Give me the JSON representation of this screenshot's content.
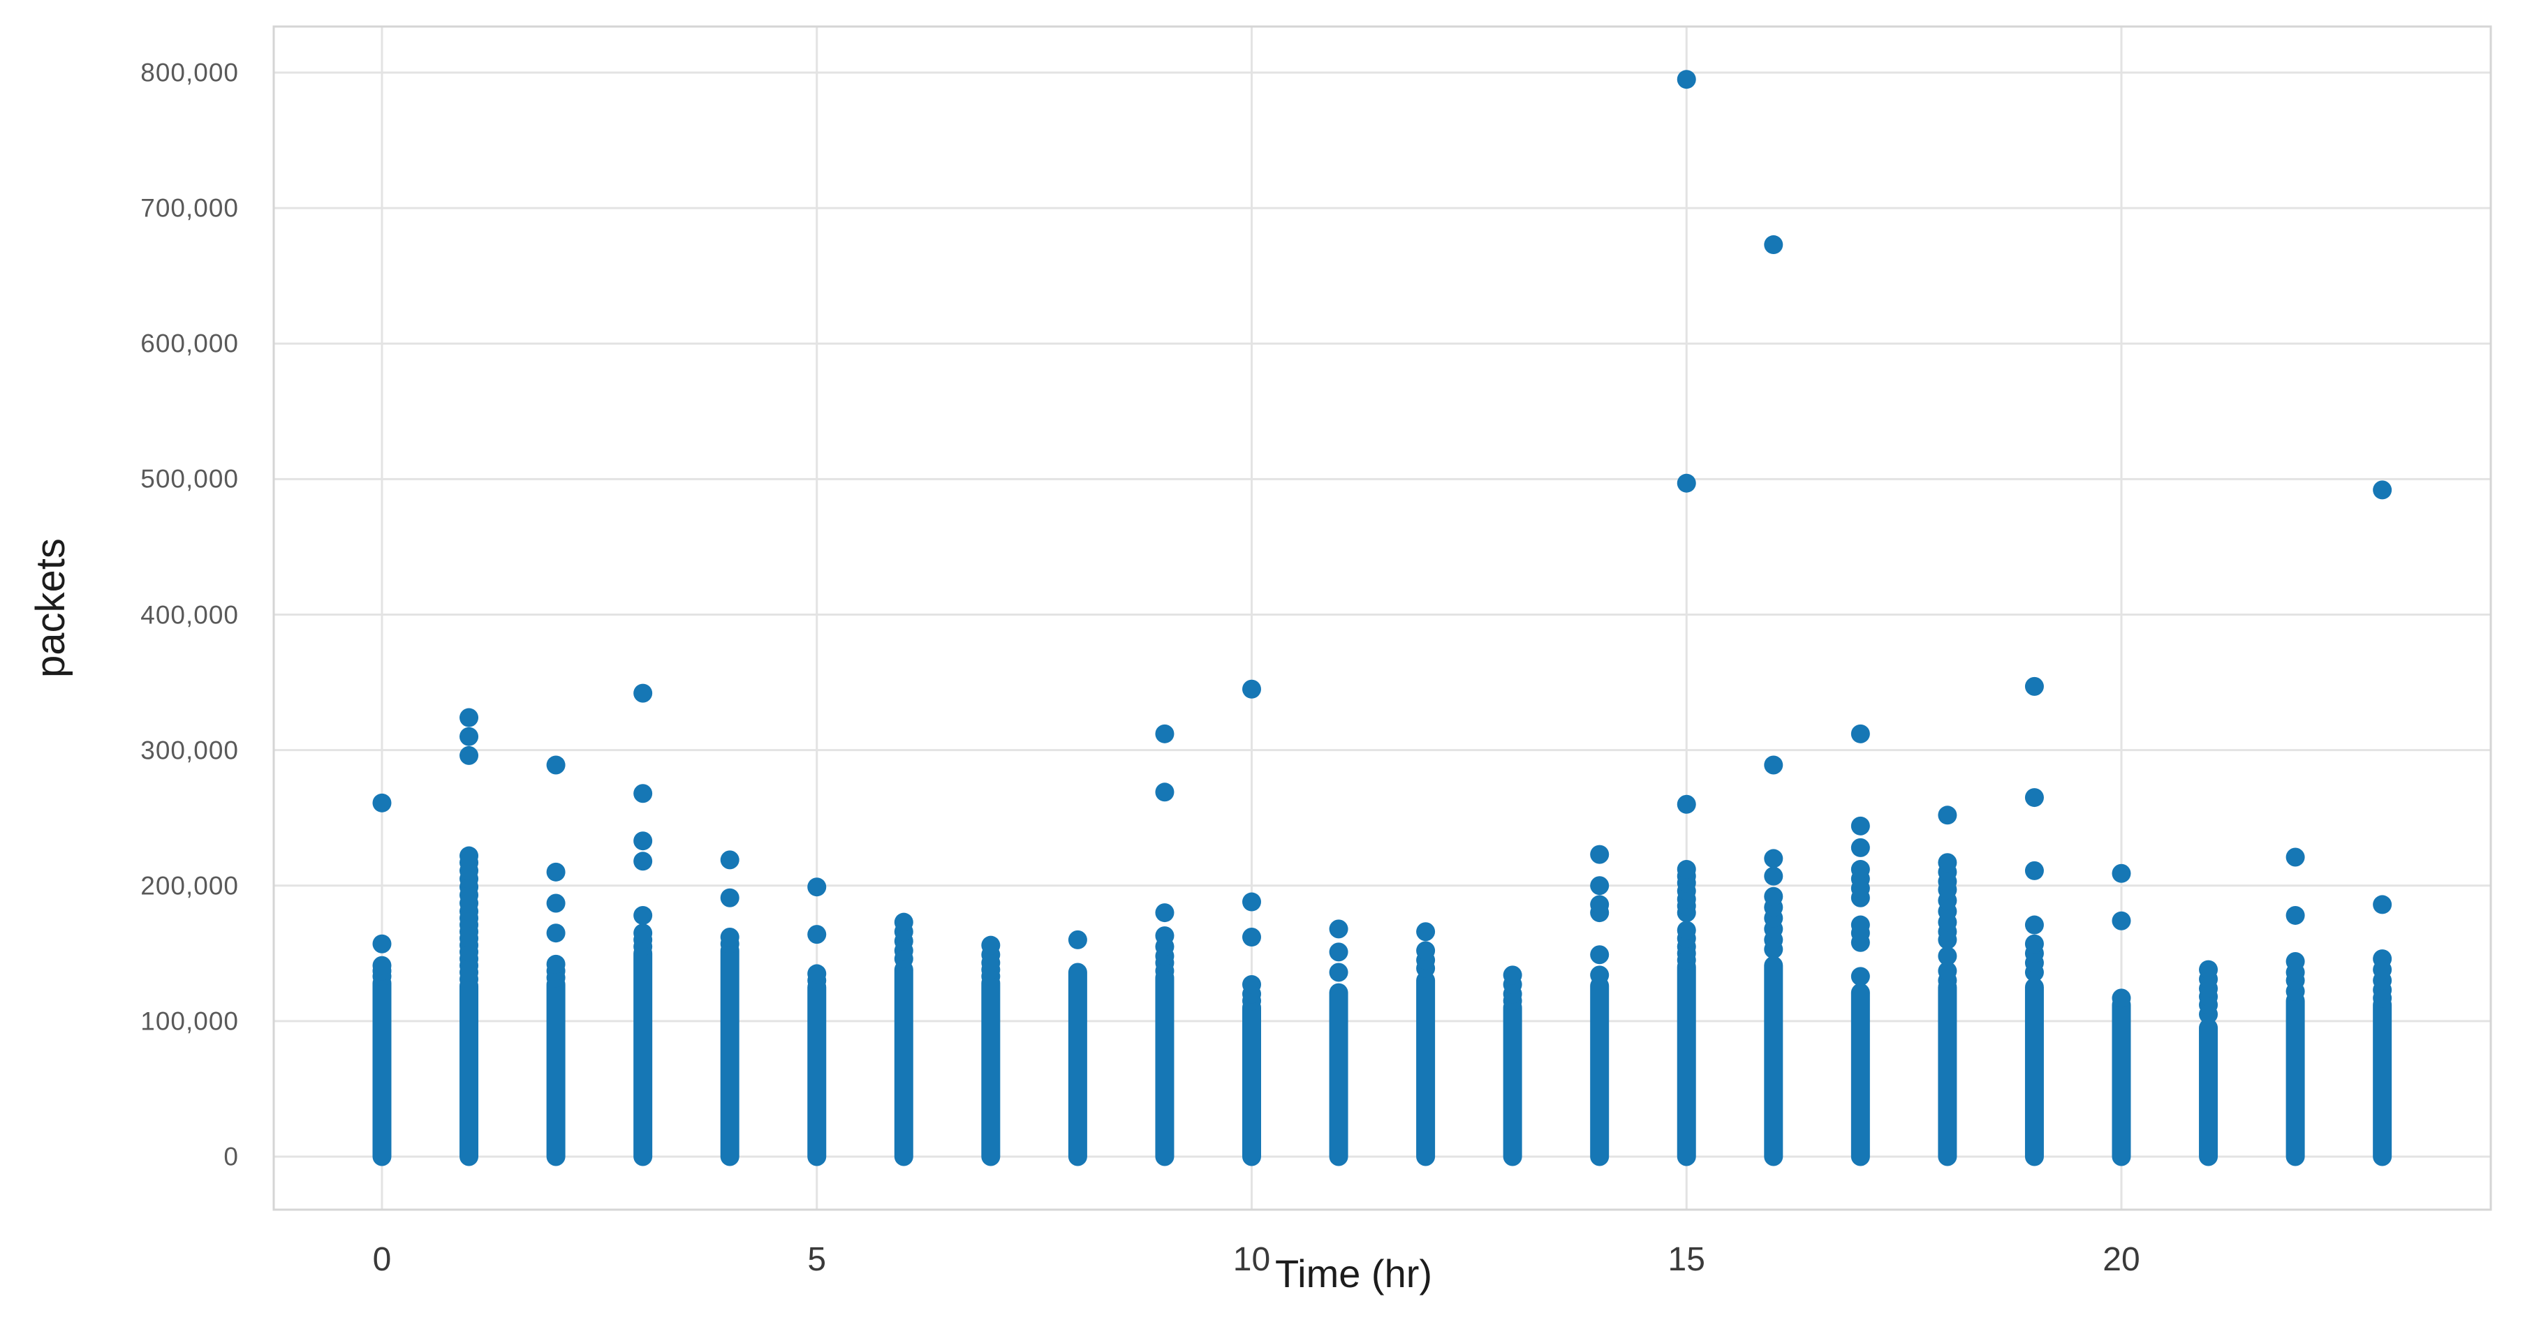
{
  "chart_data": {
    "type": "scatter",
    "title": "",
    "xlabel": "Time (hr)",
    "ylabel": "packets",
    "marker_color": "#1677b5",
    "grid": true,
    "legend": null,
    "xlim": [
      -1.25,
      24.25
    ],
    "ylim": [
      0,
      834000
    ],
    "x_ticks": [
      0,
      5,
      10,
      15,
      20
    ],
    "x_tick_labels": [
      "0",
      "5",
      "10",
      "15",
      "20"
    ],
    "y_ticks": [
      0,
      100000,
      200000,
      300000,
      400000,
      500000,
      600000,
      700000,
      800000
    ],
    "y_tick_labels": [
      "0",
      "100,000",
      "200,000",
      "300,000",
      "400,000",
      "500,000",
      "600,000",
      "700,000",
      "800,000"
    ],
    "series": [
      {
        "hour": 0,
        "dense_column_max": 128000,
        "mid_points": [
          133000,
          137000,
          141000,
          157000
        ],
        "outliers": [
          261000
        ]
      },
      {
        "hour": 1,
        "dense_column_max": 126000,
        "mid_points": [
          131000,
          136000,
          141000,
          146000,
          151000,
          156000,
          161000,
          166000,
          171000,
          176000,
          181000,
          187000,
          193000,
          199000,
          205000,
          211000,
          217000,
          222000
        ],
        "outliers": [
          296000,
          310000,
          324000
        ]
      },
      {
        "hour": 2,
        "dense_column_max": 127000,
        "mid_points": [
          132000,
          137000,
          142000,
          165000,
          187000,
          210000
        ],
        "outliers": [
          289000
        ]
      },
      {
        "hour": 3,
        "dense_column_max": 150000,
        "mid_points": [
          155000,
          160000,
          165000,
          178000,
          218000,
          233000
        ],
        "outliers": [
          268000,
          342000
        ]
      },
      {
        "hour": 4,
        "dense_column_max": 152000,
        "mid_points": [
          157000,
          162000,
          191000,
          219000
        ],
        "outliers": []
      },
      {
        "hour": 5,
        "dense_column_max": 125000,
        "mid_points": [
          130000,
          135000,
          164000,
          199000
        ],
        "outliers": []
      },
      {
        "hour": 6,
        "dense_column_max": 138000,
        "mid_points": [
          146000,
          152000,
          159000,
          166000,
          173000
        ],
        "outliers": []
      },
      {
        "hour": 7,
        "dense_column_max": 128000,
        "mid_points": [
          133000,
          138000,
          143000,
          149000,
          156000
        ],
        "outliers": []
      },
      {
        "hour": 8,
        "dense_column_max": 136000,
        "mid_points": [],
        "outliers": [
          160000
        ]
      },
      {
        "hour": 9,
        "dense_column_max": 132000,
        "mid_points": [
          137000,
          143000,
          148000,
          155000,
          163000,
          180000
        ],
        "outliers": [
          269000,
          312000
        ]
      },
      {
        "hour": 10,
        "dense_column_max": 110000,
        "mid_points": [
          115000,
          120000,
          127000,
          162000,
          188000
        ],
        "outliers": [
          345000
        ]
      },
      {
        "hour": 11,
        "dense_column_max": 121000,
        "mid_points": [
          136000,
          151000,
          168000
        ],
        "outliers": []
      },
      {
        "hour": 12,
        "dense_column_max": 130000,
        "mid_points": [
          139000,
          145000,
          152000,
          166000
        ],
        "outliers": []
      },
      {
        "hour": 13,
        "dense_column_max": 110000,
        "mid_points": [
          115000,
          120000,
          127000,
          134000
        ],
        "outliers": []
      },
      {
        "hour": 14,
        "dense_column_max": 126000,
        "mid_points": [
          134000,
          149000,
          180000,
          186000,
          200000,
          223000
        ],
        "outliers": []
      },
      {
        "hour": 15,
        "dense_column_max": 140000,
        "mid_points": [
          145000,
          150000,
          155000,
          161000,
          167000,
          180000,
          185000,
          190000,
          196000,
          202000,
          207000,
          212000
        ],
        "outliers": [
          260000,
          497000,
          795000
        ]
      },
      {
        "hour": 16,
        "dense_column_max": 141000,
        "mid_points": [
          153000,
          160000,
          168000,
          176000,
          184000,
          192000,
          207000,
          220000
        ],
        "outliers": [
          289000,
          673000
        ]
      },
      {
        "hour": 17,
        "dense_column_max": 121000,
        "mid_points": [
          133000,
          158000,
          165000,
          171000,
          191000,
          198000,
          205000,
          212000,
          228000,
          244000
        ],
        "outliers": [
          312000
        ]
      },
      {
        "hour": 18,
        "dense_column_max": 125000,
        "mid_points": [
          130000,
          137000,
          148000,
          160000,
          166000,
          173000,
          181000,
          189000,
          197000,
          203000,
          210000,
          217000
        ],
        "outliers": [
          252000
        ]
      },
      {
        "hour": 19,
        "dense_column_max": 125000,
        "mid_points": [
          136000,
          143000,
          150000,
          157000,
          171000,
          211000
        ],
        "outliers": [
          265000,
          347000
        ]
      },
      {
        "hour": 20,
        "dense_column_max": 112000,
        "mid_points": [
          117000,
          174000
        ],
        "outliers": [
          209000
        ]
      },
      {
        "hour": 21,
        "dense_column_max": 95000,
        "mid_points": [
          105000,
          112000,
          118000,
          124000,
          131000,
          138000
        ],
        "outliers": []
      },
      {
        "hour": 22,
        "dense_column_max": 115000,
        "mid_points": [
          122000,
          130000,
          136000,
          144000,
          178000
        ],
        "outliers": [
          221000
        ]
      },
      {
        "hour": 23,
        "dense_column_max": 112000,
        "mid_points": [
          117000,
          123000,
          130000,
          138000,
          146000,
          186000
        ],
        "outliers": [
          492000
        ]
      }
    ]
  },
  "colors": {
    "marker": "#1677b5",
    "gridline": "#e3e3e3",
    "plot_border": "#d5d5d5",
    "tick_label": "#595959",
    "axis_title": "#1c1c1c",
    "background": "#ffffff"
  }
}
